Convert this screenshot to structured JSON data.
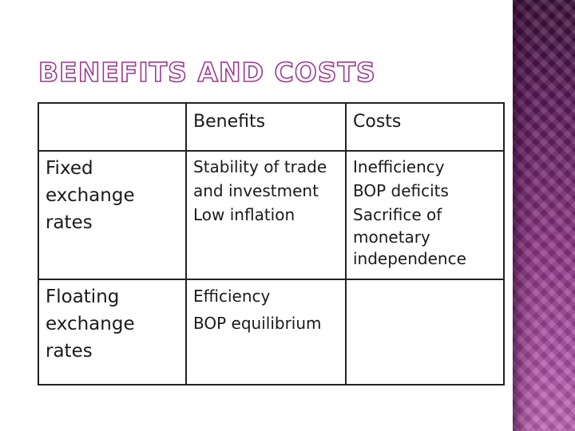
{
  "slide": {
    "title": "BENEFITS AND COSTS",
    "colors": {
      "accent": "#9c3a8f",
      "band_top": "#3d0f3c",
      "band_bottom": "#c066b6",
      "grid_line": "#222222"
    }
  },
  "table": {
    "headers": {
      "corner": "",
      "benefits": "Benefits",
      "costs": "Costs"
    },
    "rows": [
      {
        "label": [
          "Fixed",
          "exchange",
          "rates"
        ],
        "benefits": [
          "Stability of trade",
          "and investment",
          "Low inflation"
        ],
        "costs": [
          "Inefficiency",
          "BOP deficits",
          "Sacrifice of",
          "monetary",
          "independence"
        ]
      },
      {
        "label": [
          "Floating",
          "exchange",
          "rates"
        ],
        "benefits": [
          "Efficiency",
          "BOP equilibrium"
        ],
        "costs": []
      }
    ]
  }
}
